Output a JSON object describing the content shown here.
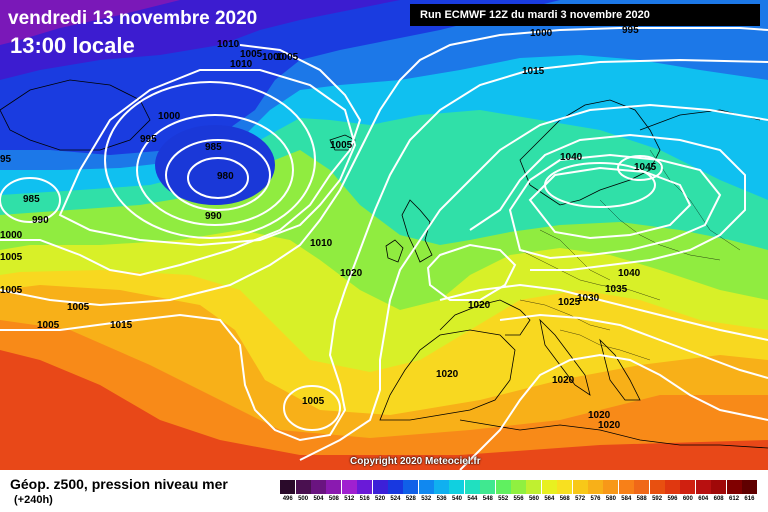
{
  "header": {
    "date_text": "vendredi 13 novembre 2020",
    "time_text": "13:00 locale",
    "run_text": "Run ECMWF 12Z du mardi 3 novembre 2020"
  },
  "footer": {
    "title": "Géop. z500, pression niveau mer",
    "subtitle": "(+240h)",
    "copyright": "Copyright 2020 Meteociel.fr"
  },
  "legend": {
    "values": [
      "496",
      "500",
      "504",
      "508",
      "512",
      "516",
      "520",
      "524",
      "528",
      "532",
      "536",
      "540",
      "544",
      "548",
      "552",
      "556",
      "560",
      "564",
      "568",
      "572",
      "576",
      "580",
      "584",
      "588",
      "592",
      "596",
      "600",
      "604",
      "608",
      "612",
      "616"
    ],
    "colors": [
      "#2a0a2a",
      "#4a1050",
      "#6a1480",
      "#8a1ab0",
      "#a020d0",
      "#6a1ad8",
      "#3c20d8",
      "#1838e0",
      "#1060e8",
      "#1088f0",
      "#10b0f0",
      "#10d0e0",
      "#20e0c0",
      "#40e890",
      "#60f060",
      "#90f040",
      "#c0f030",
      "#e8f020",
      "#f8e020",
      "#f8c818",
      "#f8b018",
      "#f89818",
      "#f88018",
      "#f06818",
      "#e85010",
      "#e03810",
      "#d02010",
      "#b81010",
      "#a00808",
      "#800000",
      "#600000"
    ]
  },
  "isobars": [
    {
      "label": "1010"
    },
    {
      "label": "1005"
    },
    {
      "label": "1010"
    },
    {
      "label": "1000"
    },
    {
      "label": "1005"
    },
    {
      "label": "1000"
    },
    {
      "label": "995"
    },
    {
      "label": "1015"
    },
    {
      "label": "1000"
    },
    {
      "label": "995"
    },
    {
      "label": "985"
    },
    {
      "label": "980"
    },
    {
      "label": "1005"
    },
    {
      "label": "95"
    },
    {
      "label": "985"
    },
    {
      "label": "990"
    },
    {
      "label": "990"
    },
    {
      "label": "1040"
    },
    {
      "label": "1045"
    },
    {
      "label": "1000"
    },
    {
      "label": "1005"
    },
    {
      "label": "1010"
    },
    {
      "label": "1005"
    },
    {
      "label": "1020"
    },
    {
      "label": "1040"
    },
    {
      "label": "1020"
    },
    {
      "label": "1005"
    },
    {
      "label": "1035"
    },
    {
      "label": "1025"
    },
    {
      "label": "1030"
    },
    {
      "label": "1005"
    },
    {
      "label": "1015"
    },
    {
      "label": "1020"
    },
    {
      "label": "1020"
    },
    {
      "label": "1005"
    },
    {
      "label": "1020"
    },
    {
      "label": "1020"
    }
  ]
}
